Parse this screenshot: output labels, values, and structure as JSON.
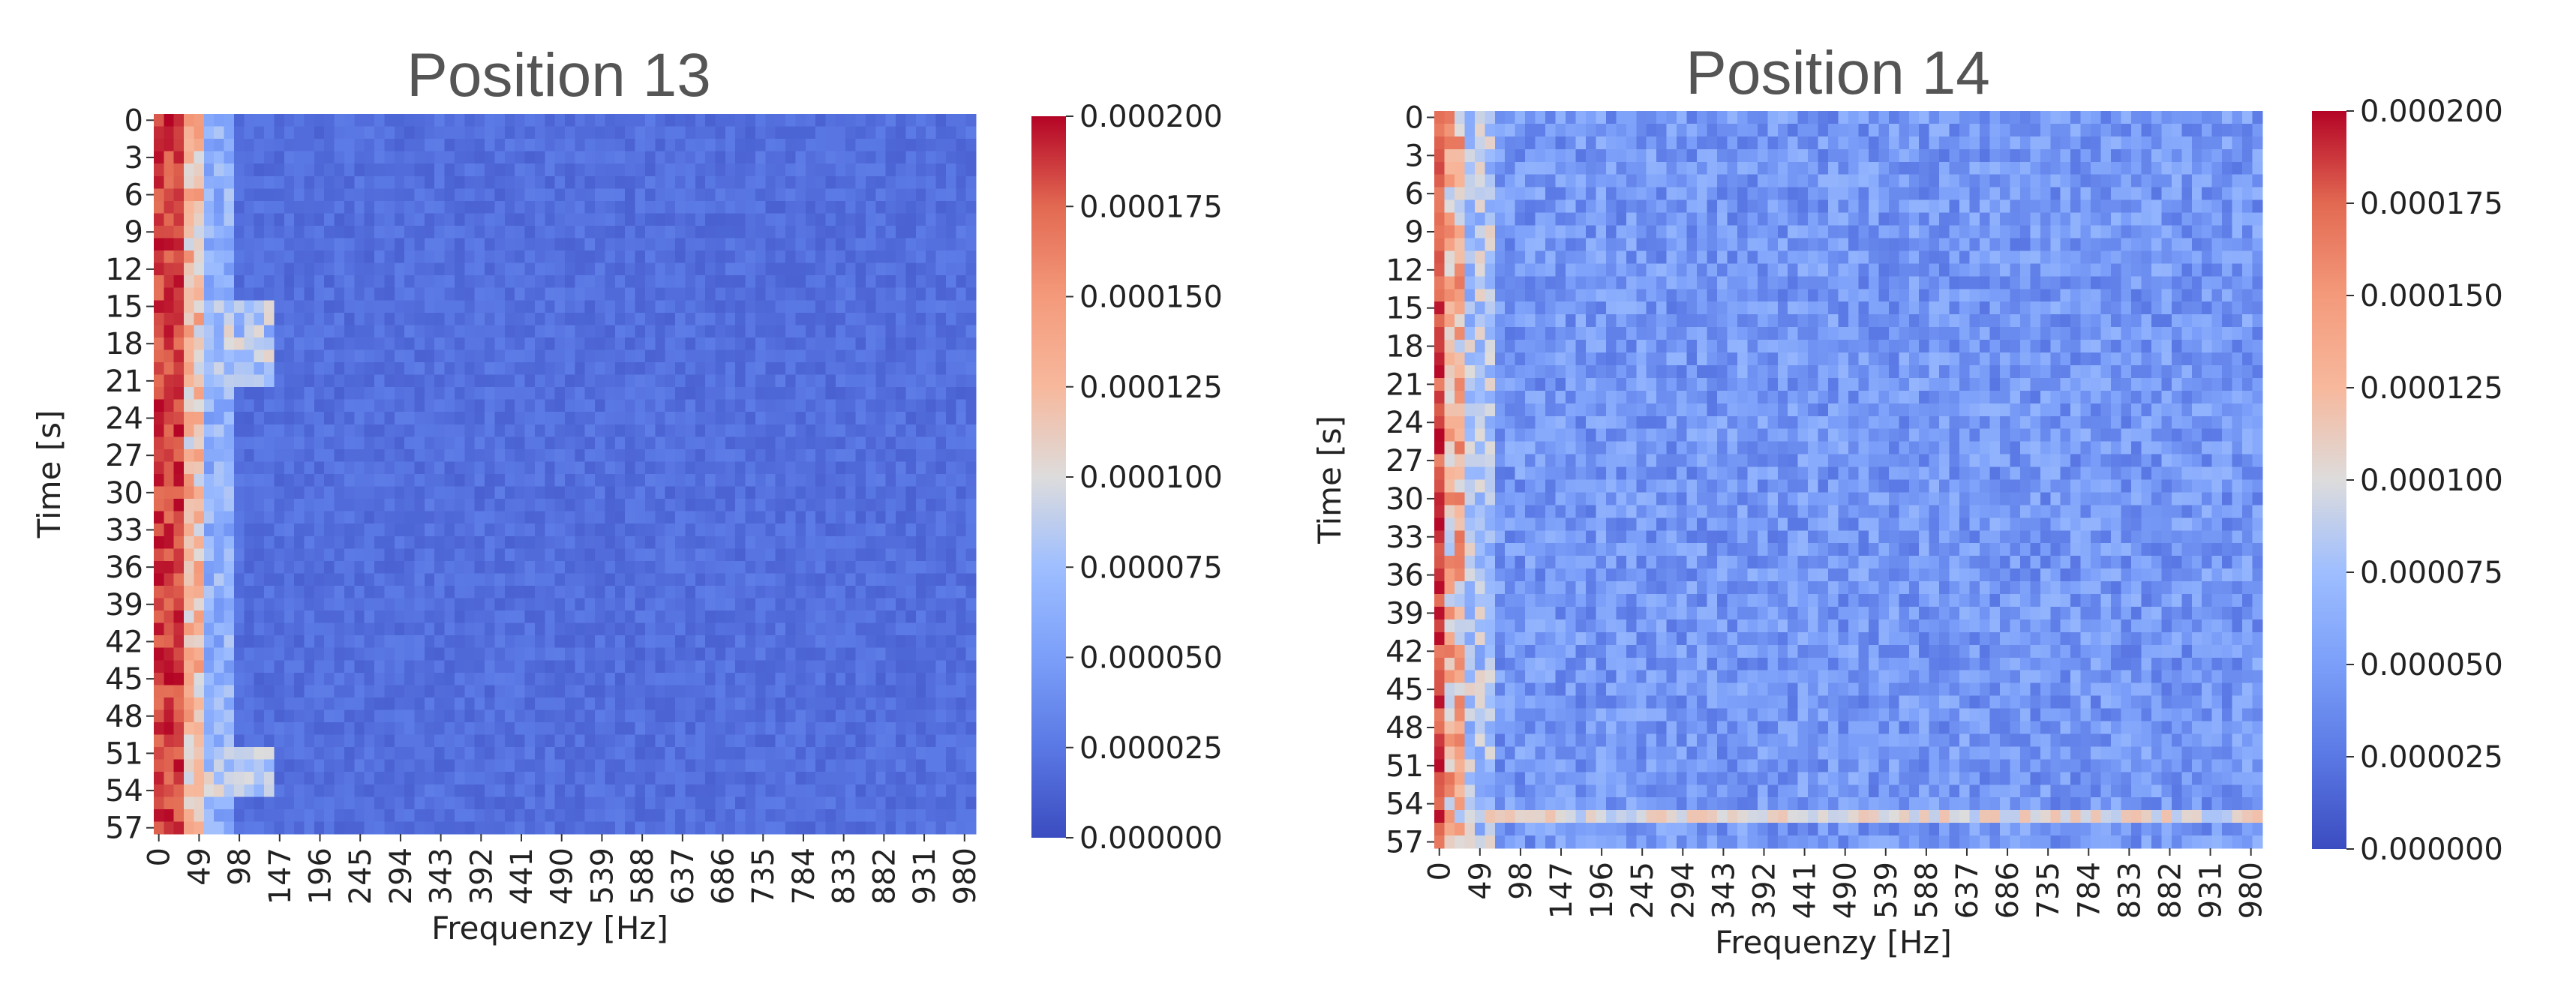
{
  "chart_data": [
    {
      "type": "heatmap",
      "title": "Position 13",
      "xlabel": "Frequenzy [Hz]",
      "ylabel": "Time [s]",
      "x_tick_labels": [
        "0",
        "49",
        "98",
        "147",
        "196",
        "245",
        "294",
        "343",
        "392",
        "441",
        "490",
        "539",
        "588",
        "637",
        "686",
        "735",
        "784",
        "833",
        "882",
        "931",
        "980"
      ],
      "y_tick_labels": [
        "0",
        "3",
        "6",
        "9",
        "12",
        "15",
        "18",
        "21",
        "24",
        "27",
        "30",
        "33",
        "36",
        "39",
        "42",
        "45",
        "48",
        "51",
        "54",
        "57"
      ],
      "x_range": [
        0,
        1000
      ],
      "y_range": [
        0,
        58
      ],
      "colorbar": {
        "ticks": [
          "0.000000",
          "0.000025",
          "0.000050",
          "0.000075",
          "0.000100",
          "0.000125",
          "0.000150",
          "0.000175",
          "0.000200"
        ],
        "vmin": 0,
        "vmax": 0.0002,
        "colormap": "coolwarm"
      },
      "pattern": "low-frequency band (0-40 Hz) near 0.0002 at all times; background ~0.000005-0.00002; lighter bands around 15-21 s and 51-54 s up to ~100 Hz"
    },
    {
      "type": "heatmap",
      "title": "Position 14",
      "xlabel": "Frequenzy [Hz]",
      "ylabel": "Time [s]",
      "x_tick_labels": [
        "0",
        "49",
        "98",
        "147",
        "196",
        "245",
        "294",
        "343",
        "392",
        "441",
        "490",
        "539",
        "588",
        "637",
        "686",
        "735",
        "784",
        "833",
        "882",
        "931",
        "980"
      ],
      "y_tick_labels": [
        "0",
        "3",
        "6",
        "9",
        "12",
        "15",
        "18",
        "21",
        "24",
        "27",
        "30",
        "33",
        "36",
        "39",
        "42",
        "45",
        "48",
        "51",
        "54",
        "57"
      ],
      "x_range": [
        0,
        1000
      ],
      "y_range": [
        0,
        58
      ],
      "colorbar": {
        "ticks": [
          "0.000000",
          "0.000025",
          "0.000050",
          "0.000075",
          "0.000100",
          "0.000125",
          "0.000150",
          "0.000175",
          "0.000200"
        ],
        "vmin": 0,
        "vmax": 0.0002,
        "colormap": "coolwarm"
      },
      "pattern": "narrow low-frequency band (0-20 Hz) near 0.0002; noisier background ~0.00001-0.00006; bright horizontal line at ~55 s across all frequencies"
    }
  ]
}
